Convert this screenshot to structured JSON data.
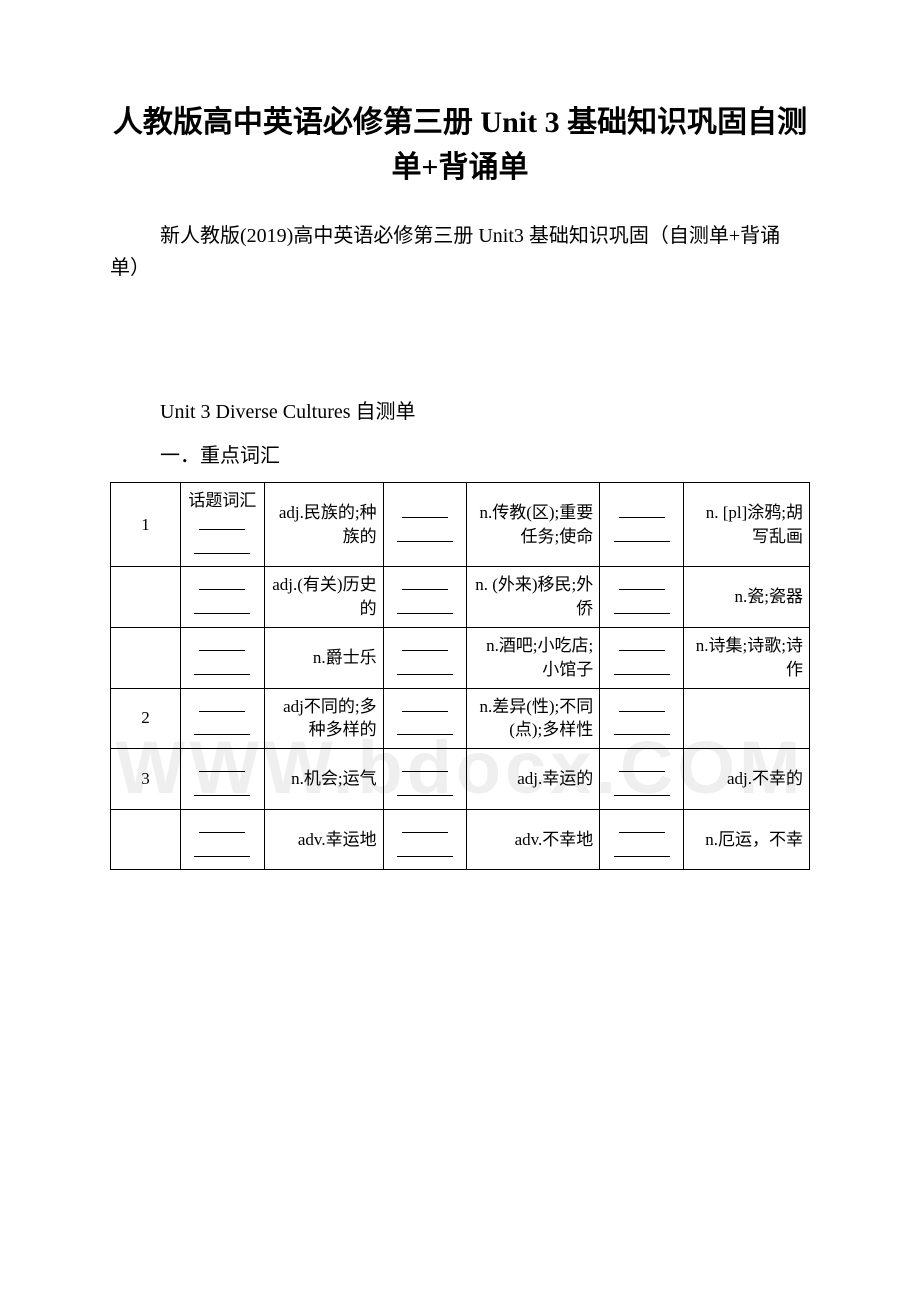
{
  "title": "人教版高中英语必修第三册 Unit 3 基础知识巩固自测单+背诵单",
  "subtitle": "新人教版(2019)高中英语必修第三册 Unit3 基础知识巩固（自测单+背诵单）",
  "section_unit": "Unit 3 Diverse Cultures 自测单",
  "section_heading": "一．重点词汇",
  "watermark": "WWW.bdocx.COM",
  "colors": {
    "text": "#000000",
    "background": "#ffffff",
    "border": "#000000",
    "watermark": "#efefef"
  },
  "table": {
    "rows": [
      {
        "num": "1",
        "top": "话题词汇",
        "c3": "adj.民族的;种族的",
        "c5": "n.传教(区);重要任务;使命",
        "c7": "n. [pl]涂鸦;胡写乱画"
      },
      {
        "num": "",
        "top": "",
        "c3": "adj.(有关)历史的",
        "c5": "n. (外来)移民;外侨",
        "c7": "n.瓷;瓷器"
      },
      {
        "num": "",
        "top": "",
        "c3": "n.爵士乐",
        "c5": "n.酒吧;小吃店;小馆子",
        "c7": "n.诗集;诗歌;诗作"
      },
      {
        "num": "2",
        "top": "",
        "c3": "adj不同的;多种多样的",
        "c5": "n.差异(性);不同(点);多样性",
        "c7": ""
      },
      {
        "num": "3",
        "top": "",
        "c3": "n.机会;运气",
        "c5": "adj.幸运的",
        "c7": "adj.不幸的"
      },
      {
        "num": "",
        "top": "",
        "c3": "adv.幸运地",
        "c5": "adv.不幸地",
        "c7": "n.厄运，不幸"
      }
    ]
  }
}
